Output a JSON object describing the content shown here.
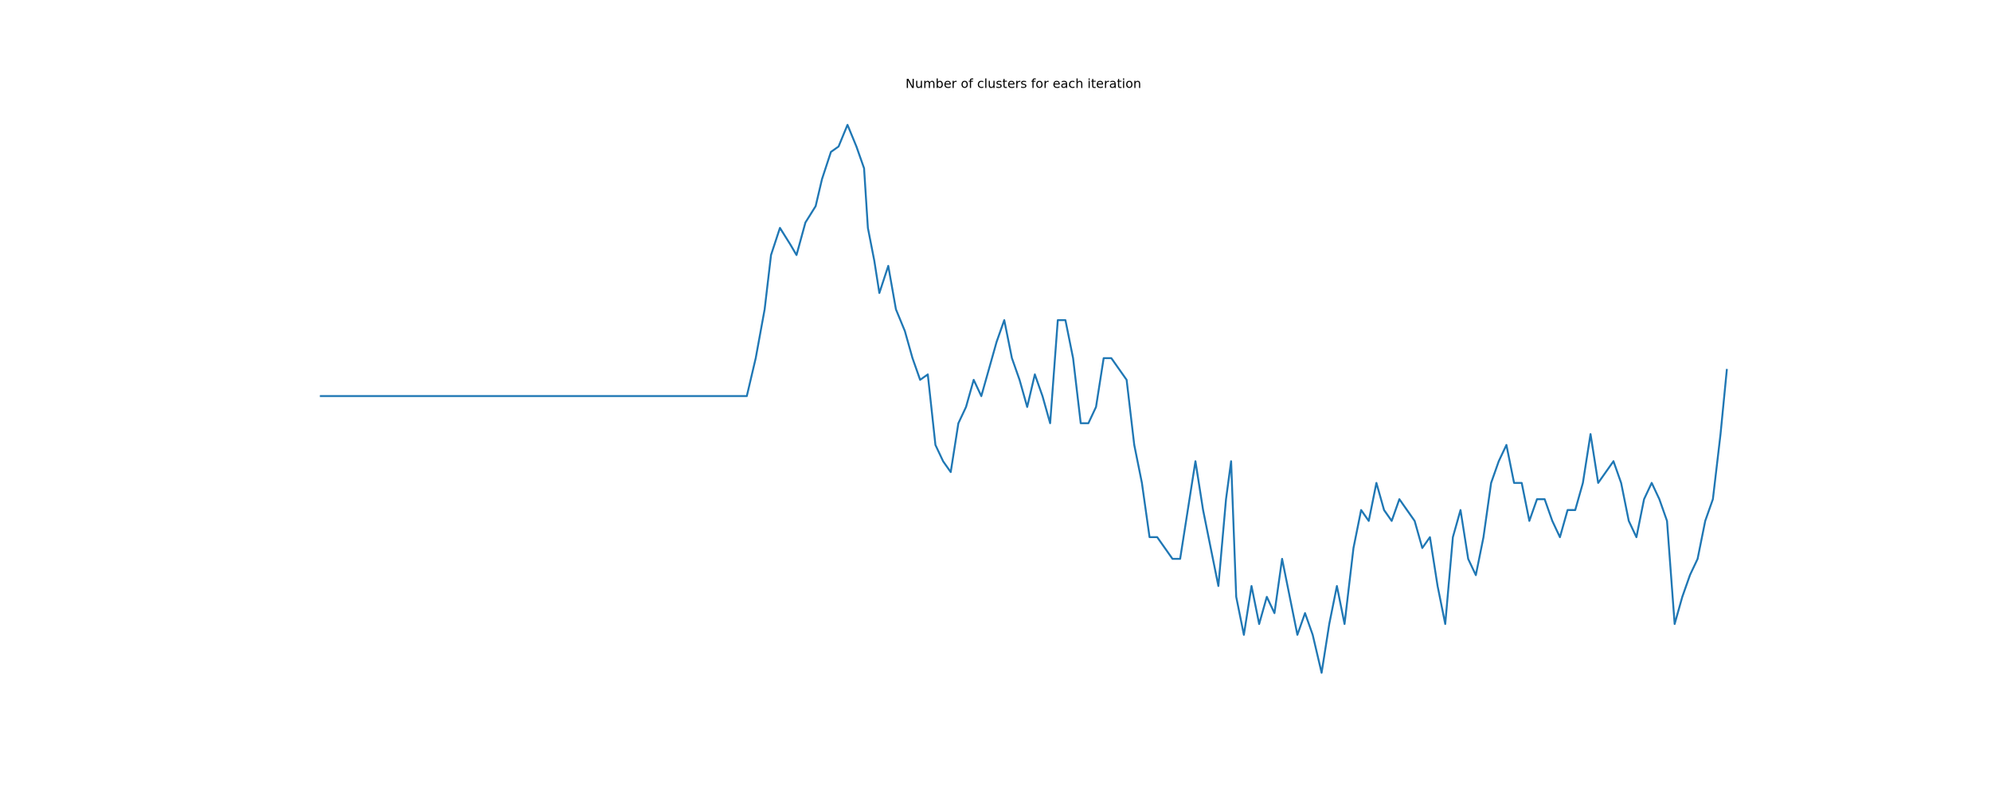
{
  "chart_data": {
    "type": "line",
    "title": "Number of clusters for each iteration",
    "color": "#1f77b4",
    "xlim": [
      -560,
      11550
    ],
    "ylim": [
      3.9,
      115.4
    ],
    "x": [
      0,
      3350,
      3420,
      3490,
      3540,
      3610,
      3690,
      3740,
      3810,
      3890,
      3940,
      4010,
      4070,
      4140,
      4210,
      4270,
      4300,
      4350,
      4390,
      4460,
      4520,
      4590,
      4650,
      4710,
      4770,
      4830,
      4890,
      4950,
      5010,
      5070,
      5130,
      5190,
      5250,
      5310,
      5370,
      5430,
      5490,
      5550,
      5610,
      5670,
      5730,
      5790,
      5850,
      5910,
      5970,
      6030,
      6090,
      6150,
      6210,
      6270,
      6330,
      6390,
      6450,
      6510,
      6570,
      6630,
      6690,
      6750,
      6810,
      6870,
      6930,
      6990,
      7050,
      7110,
      7150,
      7190,
      7250,
      7310,
      7370,
      7430,
      7490,
      7550,
      7610,
      7670,
      7730,
      7790,
      7860,
      7920,
      7980,
      8040,
      8110,
      8170,
      8230,
      8290,
      8350,
      8410,
      8470,
      8530,
      8590,
      8650,
      8710,
      8770,
      8830,
      8890,
      8950,
      9010,
      9070,
      9130,
      9190,
      9250,
      9310,
      9370,
      9430,
      9490,
      9550,
      9610,
      9670,
      9730,
      9790,
      9850,
      9910,
      9970,
      10030,
      10090,
      10150,
      10210,
      10270,
      10330,
      10390,
      10450,
      10510,
      10570,
      10630,
      10690,
      10750,
      10810,
      10870,
      10930,
      10990,
      11040
    ],
    "values": [
      60,
      60,
      67,
      76,
      86,
      91,
      88,
      86,
      92,
      95,
      100,
      105,
      106,
      110,
      106,
      102,
      91,
      85,
      79,
      84,
      76,
      72,
      67,
      63,
      64,
      51,
      48,
      46,
      55,
      58,
      63,
      60,
      65,
      70,
      74,
      67,
      63,
      58,
      64,
      60,
      55,
      74,
      74,
      67,
      55,
      55,
      58,
      67,
      67,
      65,
      63,
      51,
      44,
      34,
      34,
      32,
      30,
      30,
      39,
      48,
      39,
      32,
      25,
      41,
      48,
      23,
      16,
      25,
      18,
      23,
      20,
      30,
      23,
      16,
      20,
      16,
      9,
      18,
      25,
      18,
      32,
      39,
      37,
      44,
      39,
      37,
      41,
      39,
      37,
      32,
      34,
      25,
      18,
      34,
      39,
      30,
      27,
      34,
      44,
      48,
      51,
      44,
      44,
      37,
      41,
      41,
      37,
      34,
      39,
      39,
      44,
      53,
      44,
      46,
      48,
      44,
      37,
      34,
      41,
      44,
      41,
      37,
      18,
      23,
      27,
      30,
      37,
      41,
      53,
      65
    ]
  }
}
